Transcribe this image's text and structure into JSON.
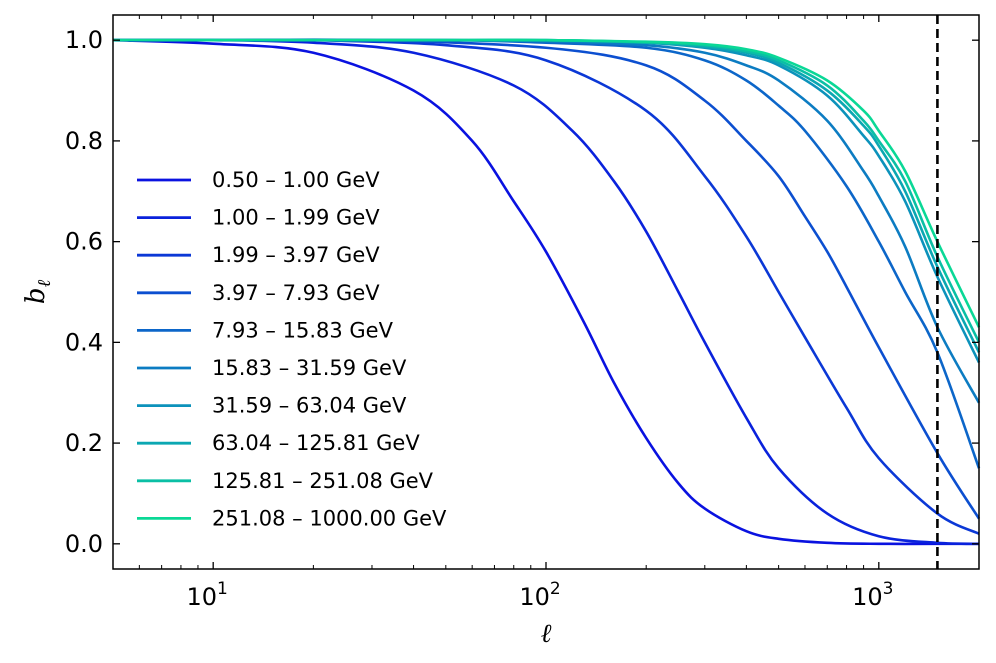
{
  "chart_data": {
    "type": "line",
    "title": "",
    "xlabel": "ℓ",
    "ylabel_base": "b",
    "ylabel_sub": "ℓ",
    "xscale": "log",
    "xlim": [
      5,
      2000
    ],
    "ylim": [
      -0.05,
      1.05
    ],
    "x_ticks": [
      {
        "value": 10,
        "base": "10",
        "exp": "1"
      },
      {
        "value": 100,
        "base": "10",
        "exp": "2"
      },
      {
        "value": 1000,
        "base": "10",
        "exp": "3"
      }
    ],
    "y_ticks": [
      {
        "value": 0.0,
        "label": "0.0"
      },
      {
        "value": 0.2,
        "label": "0.2"
      },
      {
        "value": 0.4,
        "label": "0.4"
      },
      {
        "value": 0.6,
        "label": "0.6"
      },
      {
        "value": 0.8,
        "label": "0.8"
      },
      {
        "value": 1.0,
        "label": "1.0"
      }
    ],
    "vline": {
      "x": 1500,
      "style": "dashed",
      "color": "#000000"
    },
    "legend_position": "center-left",
    "series": [
      {
        "name": "0.50 – 1.00 GeV",
        "color": "#0a12e0",
        "x": [
          5,
          10,
          20,
          40,
          60,
          80,
          100,
          130,
          160,
          200,
          250,
          300,
          400,
          500,
          700,
          1000,
          1500,
          2000
        ],
        "y": [
          1.0,
          0.993,
          0.975,
          0.9,
          0.8,
          0.68,
          0.58,
          0.44,
          0.32,
          0.21,
          0.12,
          0.07,
          0.025,
          0.01,
          0.002,
          0.0,
          0.0,
          0.0
        ]
      },
      {
        "name": "1.00 – 1.99 GeV",
        "color": "#0a22dc",
        "x": [
          5,
          10,
          20,
          40,
          80,
          120,
          160,
          200,
          250,
          300,
          400,
          500,
          700,
          1000,
          1500,
          2000
        ],
        "y": [
          1.0,
          1.0,
          0.995,
          0.975,
          0.91,
          0.82,
          0.72,
          0.62,
          0.5,
          0.4,
          0.25,
          0.15,
          0.06,
          0.015,
          0.002,
          0.0
        ]
      },
      {
        "name": "1.99 – 3.97 GeV",
        "color": "#0b38d6",
        "x": [
          5,
          10,
          20,
          50,
          100,
          200,
          300,
          400,
          500,
          600,
          800,
          1000,
          1500,
          2000
        ],
        "y": [
          1.0,
          1.0,
          1.0,
          0.99,
          0.96,
          0.86,
          0.73,
          0.61,
          0.5,
          0.41,
          0.27,
          0.17,
          0.06,
          0.02
        ]
      },
      {
        "name": "3.97 – 7.93 GeV",
        "color": "#0c4fd0",
        "x": [
          5,
          10,
          30,
          100,
          200,
          300,
          400,
          500,
          600,
          700,
          800,
          1000,
          1500,
          2000
        ],
        "y": [
          1.0,
          1.0,
          1.0,
          0.985,
          0.95,
          0.88,
          0.8,
          0.73,
          0.65,
          0.58,
          0.51,
          0.39,
          0.18,
          0.05
        ]
      },
      {
        "name": "7.93 – 15.83 GeV",
        "color": "#0c66c9",
        "x": [
          5,
          10,
          50,
          100,
          200,
          300,
          400,
          500,
          600,
          800,
          1000,
          1200,
          1500,
          2000
        ],
        "y": [
          1.0,
          1.0,
          1.0,
          0.995,
          0.985,
          0.96,
          0.92,
          0.87,
          0.82,
          0.71,
          0.6,
          0.5,
          0.38,
          0.15
        ]
      },
      {
        "name": "15.83 – 31.59 GeV",
        "color": "#0c7cc2",
        "x": [
          5,
          10,
          50,
          100,
          200,
          300,
          400,
          500,
          700,
          900,
          1000,
          1200,
          1500,
          2000
        ],
        "y": [
          1.0,
          1.0,
          1.0,
          0.998,
          0.99,
          0.975,
          0.95,
          0.92,
          0.84,
          0.74,
          0.69,
          0.59,
          0.43,
          0.28
        ]
      },
      {
        "name": "31.59 – 63.04 GeV",
        "color": "#0c92bb",
        "x": [
          5,
          10,
          50,
          100,
          200,
          300,
          400,
          500,
          700,
          900,
          1000,
          1200,
          1500,
          2000
        ],
        "y": [
          1.0,
          1.0,
          1.0,
          1.0,
          0.995,
          0.985,
          0.97,
          0.95,
          0.89,
          0.81,
          0.77,
          0.68,
          0.53,
          0.36
        ]
      },
      {
        "name": "63.04 – 125.81 GeV",
        "color": "#0ba7b2",
        "x": [
          5,
          10,
          50,
          100,
          200,
          300,
          400,
          500,
          700,
          900,
          1000,
          1200,
          1500,
          2000
        ],
        "y": [
          1.0,
          1.0,
          1.0,
          1.0,
          0.995,
          0.987,
          0.975,
          0.955,
          0.9,
          0.83,
          0.79,
          0.7,
          0.55,
          0.38
        ]
      },
      {
        "name": "125.81 – 251.08 GeV",
        "color": "#0abfa5",
        "x": [
          5,
          10,
          50,
          100,
          200,
          300,
          400,
          500,
          700,
          900,
          1000,
          1200,
          1500,
          2000
        ],
        "y": [
          1.0,
          1.0,
          1.0,
          1.0,
          0.996,
          0.99,
          0.978,
          0.96,
          0.91,
          0.84,
          0.8,
          0.72,
          0.57,
          0.4
        ]
      },
      {
        "name": "251.08 – 1000.00 GeV",
        "color": "#0ad896",
        "x": [
          5,
          10,
          50,
          100,
          200,
          300,
          400,
          500,
          700,
          900,
          1000,
          1200,
          1500,
          2000
        ],
        "y": [
          1.0,
          1.0,
          1.0,
          1.0,
          0.997,
          0.992,
          0.982,
          0.965,
          0.92,
          0.86,
          0.82,
          0.74,
          0.6,
          0.43
        ]
      }
    ]
  }
}
